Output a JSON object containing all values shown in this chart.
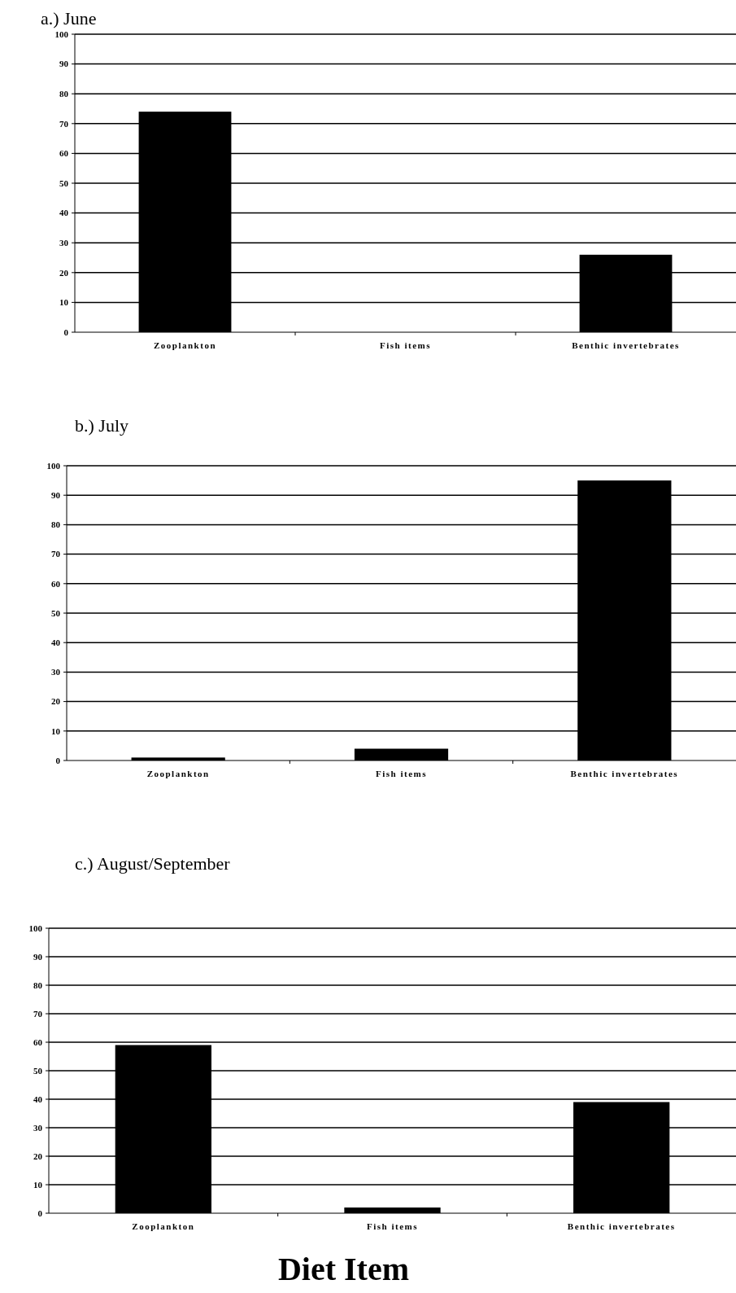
{
  "chart_data": [
    {
      "type": "bar",
      "title": "a.) June",
      "categories": [
        "Zooplankton",
        "Fish items",
        "Benthic invertebrates"
      ],
      "values": [
        74,
        0,
        26
      ],
      "color": "#000000",
      "ylim": [
        0,
        100
      ],
      "yticks": [
        0,
        10,
        20,
        30,
        40,
        50,
        60,
        70,
        80,
        90,
        100
      ],
      "grid": "y"
    },
    {
      "type": "bar",
      "title": "b.) July",
      "categories": [
        "Zooplankton",
        "Fish items",
        "Benthic invertebrates"
      ],
      "values": [
        1,
        4,
        95
      ],
      "color": "#000000",
      "ylim": [
        0,
        100
      ],
      "yticks": [
        0,
        10,
        20,
        30,
        40,
        50,
        60,
        70,
        80,
        90,
        100
      ],
      "grid": "y"
    },
    {
      "type": "bar",
      "title": "c.) August/September",
      "xlabel": "Diet Item",
      "categories": [
        "Zooplankton",
        "Fish items",
        "Benthic invertebrates"
      ],
      "values": [
        59,
        2,
        39
      ],
      "color": "#000000",
      "ylim": [
        0,
        100
      ],
      "yticks": [
        0,
        10,
        20,
        30,
        40,
        50,
        60,
        70,
        80,
        90,
        100
      ],
      "grid": "y"
    }
  ]
}
